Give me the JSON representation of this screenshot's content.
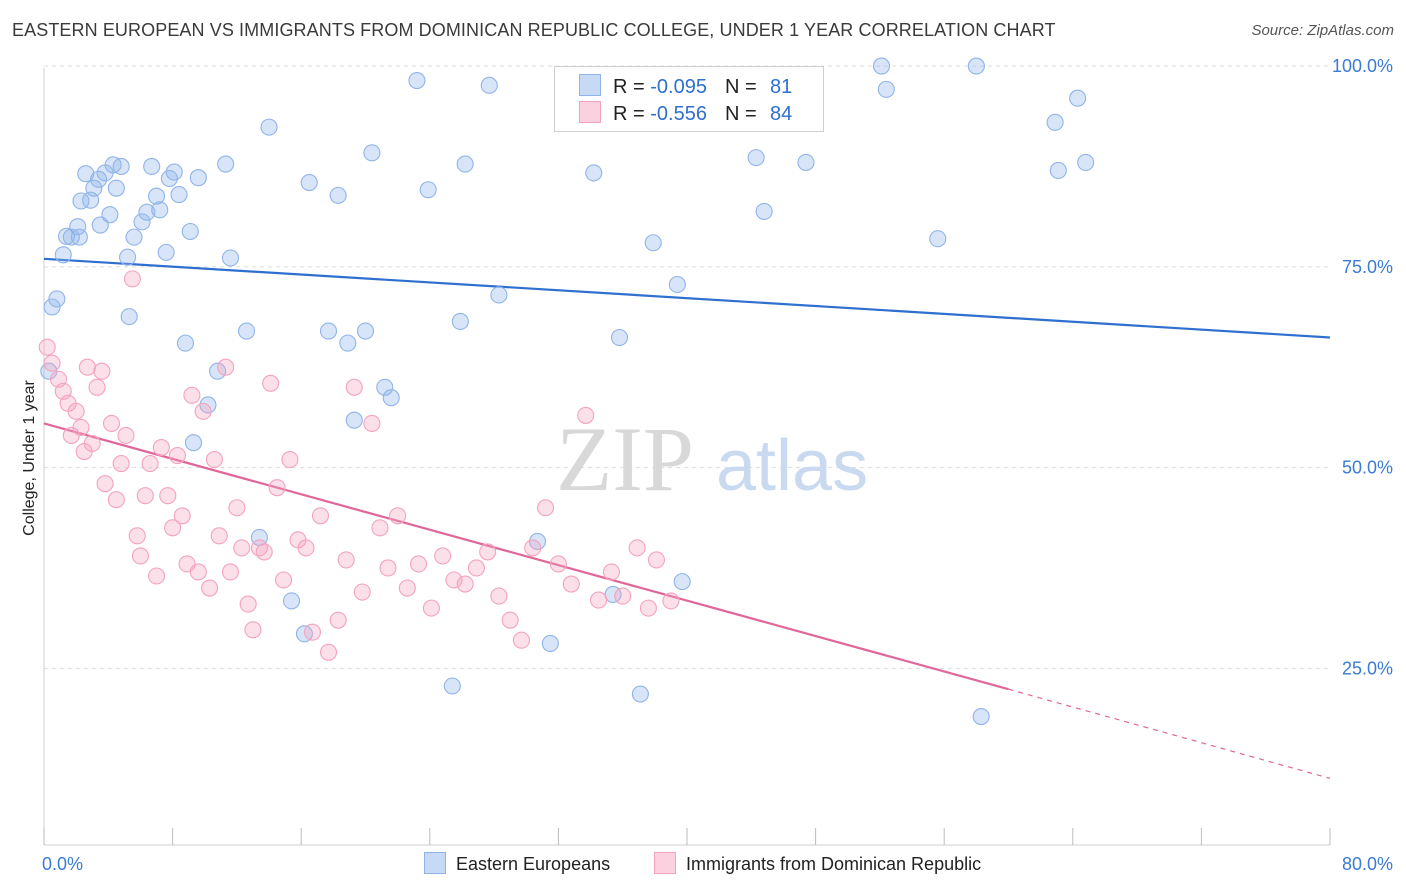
{
  "header": {
    "title": "EASTERN EUROPEAN VS IMMIGRANTS FROM DOMINICAN REPUBLIC COLLEGE, UNDER 1 YEAR CORRELATION CHART",
    "source": "Source: ZipAtlas.com"
  },
  "watermark": {
    "zip": "ZIP",
    "atlas": "atlas"
  },
  "legend": {
    "rows": [
      {
        "r_label": "R = ",
        "r_value": "-0.095",
        "n_label": "N = ",
        "n_value": "81",
        "color": "#8fb4ea"
      },
      {
        "r_label": "R = ",
        "r_value": "-0.556",
        "n_label": "N = ",
        "n_value": "84",
        "color": "#f3a3bf"
      }
    ]
  },
  "bottom_legend": {
    "items": [
      {
        "label": "Eastern Europeans",
        "color": "#8fb4ea"
      },
      {
        "label": "Immigrants from Dominican Republic",
        "color": "#f3a3bf"
      }
    ]
  },
  "chart_data": {
    "type": "scatter",
    "title": "EASTERN EUROPEAN VS IMMIGRANTS FROM DOMINICAN REPUBLIC COLLEGE, UNDER 1 YEAR CORRELATION CHART",
    "xlabel": "",
    "ylabel": "College, Under 1 year",
    "xlim": [
      0,
      80
    ],
    "ylim": [
      3,
      103
    ],
    "x_tick_labels": [
      "0.0%",
      "80.0%"
    ],
    "y_tick_labels": [
      "100.0%",
      "75.0%",
      "50.0%",
      "25.0%"
    ],
    "y_ticks": [
      100,
      75,
      50,
      25
    ],
    "grid": true,
    "legend_position": "top-center",
    "series": [
      {
        "name": "Eastern Europeans",
        "color": "#8fb4ea",
        "line_color": "#2f6fd0",
        "trend": {
          "x": [
            0,
            80
          ],
          "y": [
            76.0,
            66.2
          ]
        },
        "x": [
          0.3,
          0.5,
          0.8,
          1.2,
          1.4,
          1.7,
          2.1,
          2.2,
          2.3,
          2.6,
          2.9,
          3.1,
          3.4,
          3.5,
          3.8,
          4.1,
          4.3,
          4.5,
          4.8,
          5.2,
          5.3,
          5.6,
          6.1,
          6.4,
          6.7,
          7.0,
          7.2,
          7.6,
          7.8,
          8.1,
          8.4,
          8.8,
          9.1,
          9.3,
          9.6,
          10.2,
          10.8,
          11.3,
          11.6,
          12.6,
          13.4,
          14.0,
          15.4,
          16.2,
          16.5,
          17.7,
          18.3,
          18.9,
          19.3,
          20.0,
          20.4,
          21.2,
          21.6,
          23.2,
          23.9,
          25.4,
          25.9,
          26.2,
          27.7,
          28.3,
          30.7,
          31.5,
          34.2,
          35.4,
          35.8,
          37.1,
          37.9,
          39.4,
          39.7,
          44.3,
          44.8,
          47.4,
          52.1,
          52.4,
          55.6,
          58.0,
          58.3,
          62.9,
          63.1,
          64.3,
          64.8
        ],
        "y": [
          62.0,
          70.0,
          71.0,
          76.5,
          78.8,
          78.7,
          80.0,
          78.7,
          83.2,
          86.6,
          83.3,
          84.8,
          85.9,
          80.2,
          86.7,
          81.5,
          87.7,
          84.8,
          87.5,
          76.2,
          68.8,
          78.7,
          80.6,
          81.8,
          87.5,
          83.8,
          82.1,
          76.8,
          86.0,
          86.8,
          84.0,
          65.5,
          79.4,
          53.1,
          86.1,
          57.8,
          62.0,
          87.8,
          76.1,
          67.0,
          41.3,
          92.4,
          33.4,
          29.3,
          85.5,
          67.0,
          83.9,
          65.5,
          55.9,
          67.0,
          89.2,
          60.0,
          58.7,
          98.2,
          84.6,
          22.8,
          68.2,
          87.8,
          97.6,
          71.5,
          40.8,
          28.1,
          86.7,
          34.2,
          66.2,
          21.8,
          78.0,
          72.8,
          35.8,
          88.6,
          81.9,
          88.0,
          100.0,
          97.1,
          78.5,
          100.0,
          19.0,
          93.0,
          87.0,
          96.0,
          88.0
        ]
      },
      {
        "name": "Immigrants from Dominican Republic",
        "color": "#f3a3bf",
        "line_color": "#e0679a",
        "trend": {
          "x": [
            0,
            60
          ],
          "y": [
            55.5,
            22.4
          ]
        },
        "trend_dashed": {
          "x": [
            60,
            80
          ],
          "y": [
            22.4,
            11.3
          ]
        },
        "x": [
          0.2,
          0.5,
          0.9,
          1.2,
          1.5,
          1.7,
          2.0,
          2.3,
          2.5,
          2.7,
          3.0,
          3.3,
          3.6,
          3.8,
          4.2,
          4.5,
          4.8,
          5.1,
          5.5,
          5.8,
          6.0,
          6.3,
          6.6,
          7.0,
          7.3,
          7.7,
          8.0,
          8.3,
          8.6,
          8.9,
          9.2,
          9.6,
          9.9,
          10.3,
          10.6,
          10.9,
          11.3,
          11.6,
          12.0,
          12.3,
          12.7,
          13.0,
          13.4,
          13.7,
          14.1,
          14.5,
          14.9,
          15.3,
          15.8,
          16.3,
          16.7,
          17.2,
          17.7,
          18.3,
          18.8,
          19.3,
          19.8,
          20.4,
          20.9,
          21.4,
          22.0,
          22.6,
          23.3,
          24.1,
          24.8,
          25.5,
          26.2,
          26.9,
          27.6,
          28.3,
          29.0,
          29.7,
          30.4,
          31.2,
          32.0,
          32.8,
          33.7,
          34.5,
          35.3,
          36.0,
          36.9,
          37.6,
          38.1,
          39.0
        ],
        "y": [
          65.0,
          63.0,
          61.0,
          59.5,
          58.0,
          54.0,
          57.0,
          55.0,
          52.0,
          62.5,
          53.0,
          60.0,
          62.0,
          48.0,
          55.5,
          46.0,
          50.5,
          54.0,
          73.5,
          41.5,
          39.0,
          46.5,
          50.5,
          36.5,
          52.5,
          46.5,
          42.5,
          51.5,
          44.0,
          38.0,
          59.0,
          37.0,
          57.0,
          35.0,
          51.0,
          41.5,
          62.5,
          37.0,
          45.0,
          40.0,
          33.0,
          29.8,
          40.0,
          39.5,
          60.5,
          47.5,
          36.0,
          51.0,
          41.0,
          40.0,
          29.5,
          44.0,
          27.0,
          31.0,
          38.5,
          60.0,
          34.5,
          55.5,
          42.5,
          37.5,
          44.0,
          35.0,
          38.0,
          32.5,
          39.0,
          36.0,
          35.5,
          37.5,
          39.5,
          34.0,
          31.0,
          28.5,
          40.0,
          45.0,
          38.0,
          35.5,
          56.5,
          33.5,
          37.0,
          34.0,
          40.0,
          32.5,
          38.5,
          33.4
        ]
      }
    ]
  }
}
